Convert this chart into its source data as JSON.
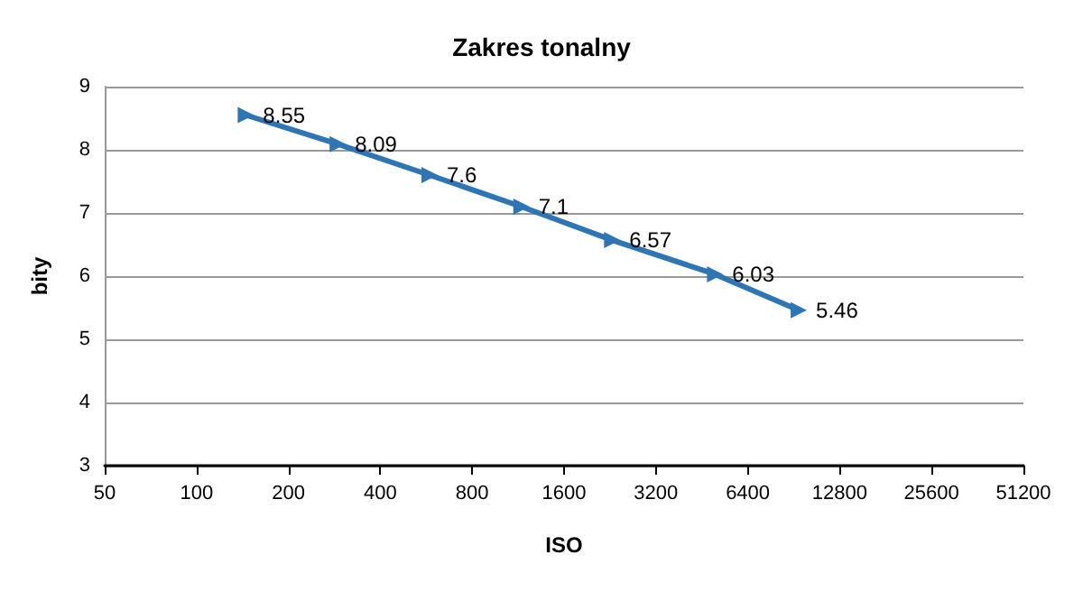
{
  "chart_data": {
    "type": "line",
    "title": "Zakres tonalny",
    "xlabel": "ISO",
    "ylabel": "bity",
    "x": [
      145,
      290,
      580,
      1160,
      2300,
      5000,
      9400
    ],
    "series": [
      {
        "color": "#2e75b6",
        "values": [
          8.55,
          8.09,
          7.6,
          7.1,
          6.57,
          6.03,
          5.46
        ]
      }
    ],
    "log": "x",
    "xlim": [
      50,
      51200
    ],
    "xticks": [
      50,
      100,
      200,
      400,
      800,
      1600,
      3200,
      6400,
      12800,
      25600,
      51200
    ],
    "ylim": [
      3,
      9
    ],
    "yticks": [
      3,
      4,
      5,
      6,
      7,
      8,
      9
    ],
    "grid": "y",
    "marker": "triangle",
    "line_style": "solid",
    "data_labels": true
  }
}
